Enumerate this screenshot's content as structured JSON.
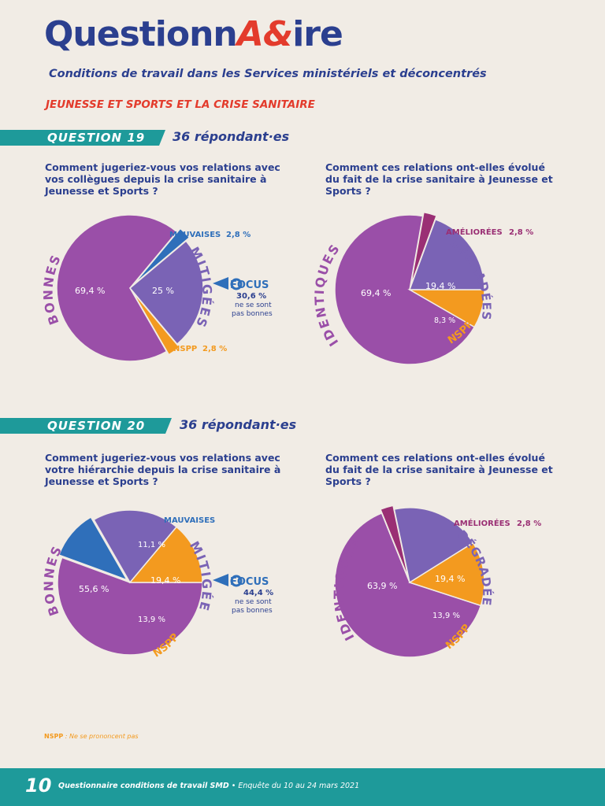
{
  "header": {
    "logo_part1": "Questionn",
    "logo_accent": "A&",
    "logo_part2": "ire",
    "subtitle": "Conditions de travail dans les Services ministériels et déconcentrés",
    "section": "JEUNESSE ET SPORTS ET LA CRISE SANITAIRE"
  },
  "q19": {
    "label": "QUESTION 19",
    "respondents": "36 répondant·es",
    "left_question": "Comment jugeriez-vous vos relations avec vos collègues depuis la crise sanitaire à Jeunesse et Sports ?",
    "right_question": "Comment ces relations ont-elles évolué du fait de la crise sanitaire à Jeunesse et Sports ?",
    "focus": {
      "title": "FOCUS",
      "value": "30,6 %",
      "line1": "ne se sont",
      "line2": "pas bonnes"
    }
  },
  "q20": {
    "label": "QUESTION 20",
    "respondents": "36 répondant·es",
    "left_question": "Comment jugeriez-vous vos relations avec votre hiérarchie depuis la crise sanitaire à Jeunesse et Sports ?",
    "right_question": "Comment ces relations ont-elles évolué du fait de la crise sanitaire à Jeunesse et Sports ?",
    "focus": {
      "title": "FOCUS",
      "value": "44,4 %",
      "line1": "ne se sont",
      "line2": "pas bonnes"
    }
  },
  "chart_data": [
    {
      "type": "pie",
      "id": "q19_left",
      "slices": [
        {
          "label": "BONNES",
          "value": 69.4,
          "display": "69,4 %",
          "color": "#9a4fa8"
        },
        {
          "label": "MAUVAISES",
          "value": 2.8,
          "display": "2,8 %",
          "color": "#2f6fba"
        },
        {
          "label": "MITIGÉES",
          "value": 25.0,
          "display": "25 %",
          "color": "#7a63b5"
        },
        {
          "label": "NSPP",
          "value": 2.8,
          "display": "2,8 %",
          "color": "#f39a1f"
        }
      ]
    },
    {
      "type": "pie",
      "id": "q19_right",
      "slices": [
        {
          "label": "IDENTIQUES",
          "value": 69.4,
          "display": "69,4 %",
          "color": "#9a4fa8"
        },
        {
          "label": "AMÉLIORÉES",
          "value": 2.8,
          "display": "2,8 %",
          "color": "#9a2f74"
        },
        {
          "label": "DÉGRADÉES",
          "value": 19.4,
          "display": "19,4 %",
          "color": "#7a63b5"
        },
        {
          "label": "NSPP",
          "value": 8.3,
          "display": "8,3 %",
          "color": "#f39a1f"
        }
      ]
    },
    {
      "type": "pie",
      "id": "q20_left",
      "slices": [
        {
          "label": "BONNES",
          "value": 55.6,
          "display": "55,6 %",
          "color": "#9a4fa8"
        },
        {
          "label": "MAUVAISES",
          "value": 11.1,
          "display": "11,1 %",
          "color": "#2f6fba"
        },
        {
          "label": "MITIGÉES",
          "value": 19.4,
          "display": "19,4 %",
          "color": "#7a63b5"
        },
        {
          "label": "NSPP",
          "value": 13.9,
          "display": "13,9 %",
          "color": "#f39a1f"
        }
      ]
    },
    {
      "type": "pie",
      "id": "q20_right",
      "slices": [
        {
          "label": "IDENTIQUES",
          "value": 63.9,
          "display": "63,9 %",
          "color": "#9a4fa8"
        },
        {
          "label": "AMÉLIORÉES",
          "value": 2.8,
          "display": "2,8 %",
          "color": "#9a2f74"
        },
        {
          "label": "DÉGRADÉES",
          "value": 19.4,
          "display": "19,4 %",
          "color": "#7a63b5"
        },
        {
          "label": "NSPP",
          "value": 13.9,
          "display": "13,9 %",
          "color": "#f39a1f"
        }
      ]
    }
  ],
  "footnote": {
    "abbr": "NSPP",
    "text": " : Ne se prononcent pas"
  },
  "footer": {
    "page": "10",
    "title": "Questionnaire conditions de travail SMD",
    "dates": " • Enquête du 10 au 24 mars 2021"
  }
}
